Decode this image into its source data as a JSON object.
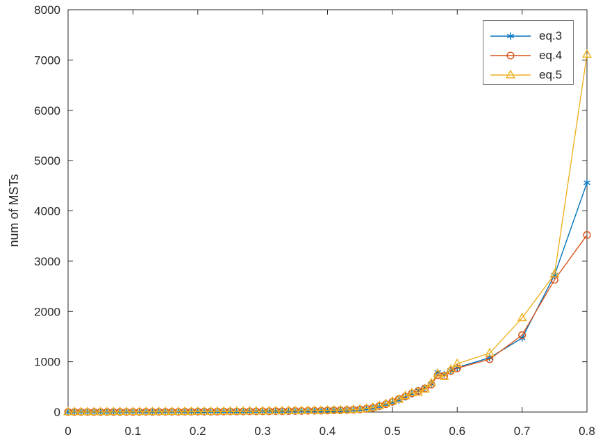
{
  "style": {
    "background": "#ffffff",
    "axes_color": "#262626",
    "legend_border_color": "#7a7a7a"
  },
  "chart_data": {
    "type": "line",
    "title": "",
    "xlabel": "",
    "ylabel": "num of MSTs",
    "grid": false,
    "legend_position": "top-right",
    "xlim": [
      0,
      0.8
    ],
    "ylim": [
      0,
      8000
    ],
    "x_ticks": [
      0,
      0.1,
      0.2,
      0.3,
      0.4,
      0.5,
      0.6,
      0.7,
      0.8
    ],
    "x_tick_labels": [
      "0",
      "0.1",
      "0.2",
      "0.3",
      "0.4",
      "0.5",
      "0.6",
      "0.7",
      "0.8"
    ],
    "y_ticks": [
      0,
      1000,
      2000,
      3000,
      4000,
      5000,
      6000,
      7000,
      8000
    ],
    "y_tick_labels": [
      "0",
      "1000",
      "2000",
      "3000",
      "4000",
      "5000",
      "6000",
      "7000",
      "8000"
    ],
    "x": [
      0,
      0.01,
      0.02,
      0.03,
      0.04,
      0.05,
      0.06,
      0.07,
      0.08,
      0.09,
      0.1,
      0.11,
      0.12,
      0.13,
      0.14,
      0.15,
      0.16,
      0.17,
      0.18,
      0.19,
      0.2,
      0.21,
      0.22,
      0.23,
      0.24,
      0.25,
      0.26,
      0.27,
      0.28,
      0.29,
      0.3,
      0.31,
      0.32,
      0.33,
      0.34,
      0.35,
      0.36,
      0.37,
      0.38,
      0.39,
      0.4,
      0.41,
      0.42,
      0.43,
      0.44,
      0.45,
      0.46,
      0.47,
      0.48,
      0.49,
      0.5,
      0.51,
      0.52,
      0.53,
      0.54,
      0.55,
      0.56,
      0.57,
      0.58,
      0.59,
      0.6,
      0.65,
      0.7,
      0.75,
      0.8
    ],
    "series": [
      {
        "name": "eq.3",
        "color": "#0072BD",
        "marker": "asterisk",
        "values": [
          1,
          1,
          1,
          2,
          1,
          2,
          2,
          3,
          2,
          3,
          3,
          4,
          3,
          5,
          4,
          5,
          6,
          5,
          7,
          6,
          8,
          7,
          9,
          8,
          10,
          11,
          10,
          12,
          14,
          13,
          15,
          16,
          18,
          17,
          20,
          22,
          21,
          25,
          27,
          26,
          30,
          33,
          36,
          40,
          44,
          50,
          62,
          80,
          112,
          150,
          192,
          238,
          300,
          362,
          428,
          482,
          560,
          790,
          745,
          830,
          885,
          1080,
          1470,
          2725,
          4560
        ]
      },
      {
        "name": "eq.4",
        "color": "#D95319",
        "marker": "circle",
        "values": [
          1,
          1,
          2,
          1,
          2,
          2,
          3,
          2,
          3,
          4,
          3,
          4,
          5,
          4,
          6,
          5,
          7,
          6,
          8,
          7,
          9,
          8,
          10,
          9,
          11,
          12,
          11,
          13,
          15,
          14,
          16,
          17,
          19,
          18,
          21,
          23,
          22,
          26,
          28,
          27,
          31,
          34,
          37,
          41,
          46,
          52,
          66,
          86,
          120,
          158,
          205,
          260,
          310,
          372,
          420,
          470,
          545,
          735,
          720,
          815,
          870,
          1050,
          1530,
          2630,
          3520
        ]
      },
      {
        "name": "eq.5",
        "color": "#EDB120",
        "marker": "triangle",
        "values": [
          1,
          2,
          1,
          2,
          2,
          3,
          2,
          3,
          3,
          4,
          4,
          5,
          4,
          6,
          5,
          6,
          7,
          6,
          8,
          7,
          9,
          10,
          9,
          11,
          12,
          13,
          12,
          14,
          16,
          15,
          17,
          18,
          20,
          19,
          22,
          24,
          23,
          27,
          29,
          28,
          32,
          35,
          38,
          42,
          47,
          54,
          68,
          90,
          125,
          165,
          210,
          250,
          320,
          380,
          390,
          450,
          575,
          760,
          700,
          845,
          960,
          1170,
          1870,
          2740,
          7110
        ]
      }
    ]
  }
}
